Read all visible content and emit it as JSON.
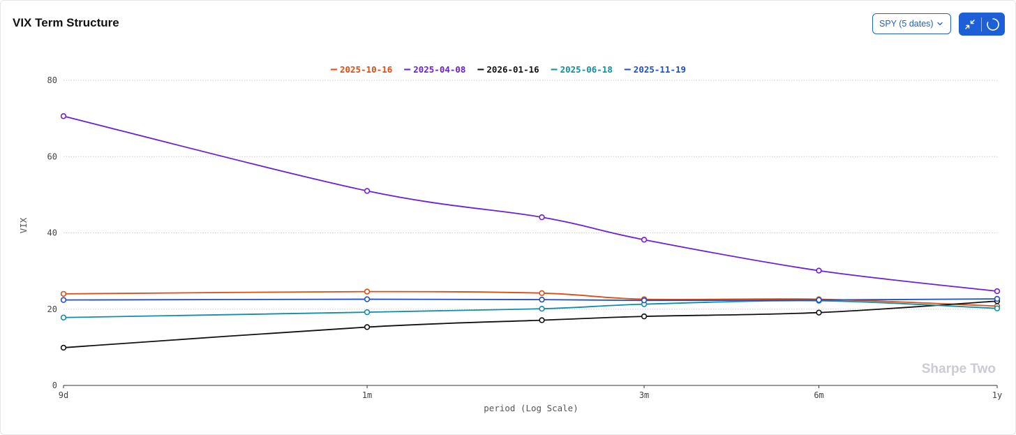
{
  "header": {
    "title": "VIX Term Structure",
    "select_label": "SPY (5 dates)"
  },
  "colors": {
    "accent": "#1c5fd6"
  },
  "chart_data": {
    "type": "line",
    "title": "",
    "xlabel": "period (Log Scale)",
    "ylabel": "VIX",
    "x_scale": "log",
    "x_days": [
      9,
      30,
      60,
      90,
      180,
      365
    ],
    "x_tick_days": [
      9,
      30,
      90,
      180,
      365
    ],
    "x_tick_labels": [
      "9d",
      "1m",
      "3m",
      "6m",
      "1y"
    ],
    "ylim": [
      0,
      80
    ],
    "yticks": [
      0,
      20,
      40,
      60,
      80
    ],
    "grid": true,
    "legend_position": "top-center",
    "series": [
      {
        "name": "2025-10-16",
        "color": "#e04b0f",
        "values": [
          24.0,
          24.6,
          24.2,
          22.6,
          22.6,
          20.8
        ]
      },
      {
        "name": "2025-04-08",
        "color": "#6d1edb",
        "values": [
          70.6,
          51.0,
          44.1,
          38.2,
          30.1,
          24.7
        ]
      },
      {
        "name": "2026-01-16",
        "color": "#111111",
        "values": [
          9.9,
          15.3,
          17.1,
          18.1,
          19.1,
          22.1
        ]
      },
      {
        "name": "2025-06-18",
        "color": "#0f8fa6",
        "values": [
          17.8,
          19.2,
          20.1,
          21.3,
          22.2,
          20.2
        ]
      },
      {
        "name": "2025-11-19",
        "color": "#1f4fc9",
        "values": [
          22.4,
          22.6,
          22.5,
          22.3,
          22.4,
          22.7
        ]
      }
    ],
    "watermark": "Sharpe Two"
  }
}
